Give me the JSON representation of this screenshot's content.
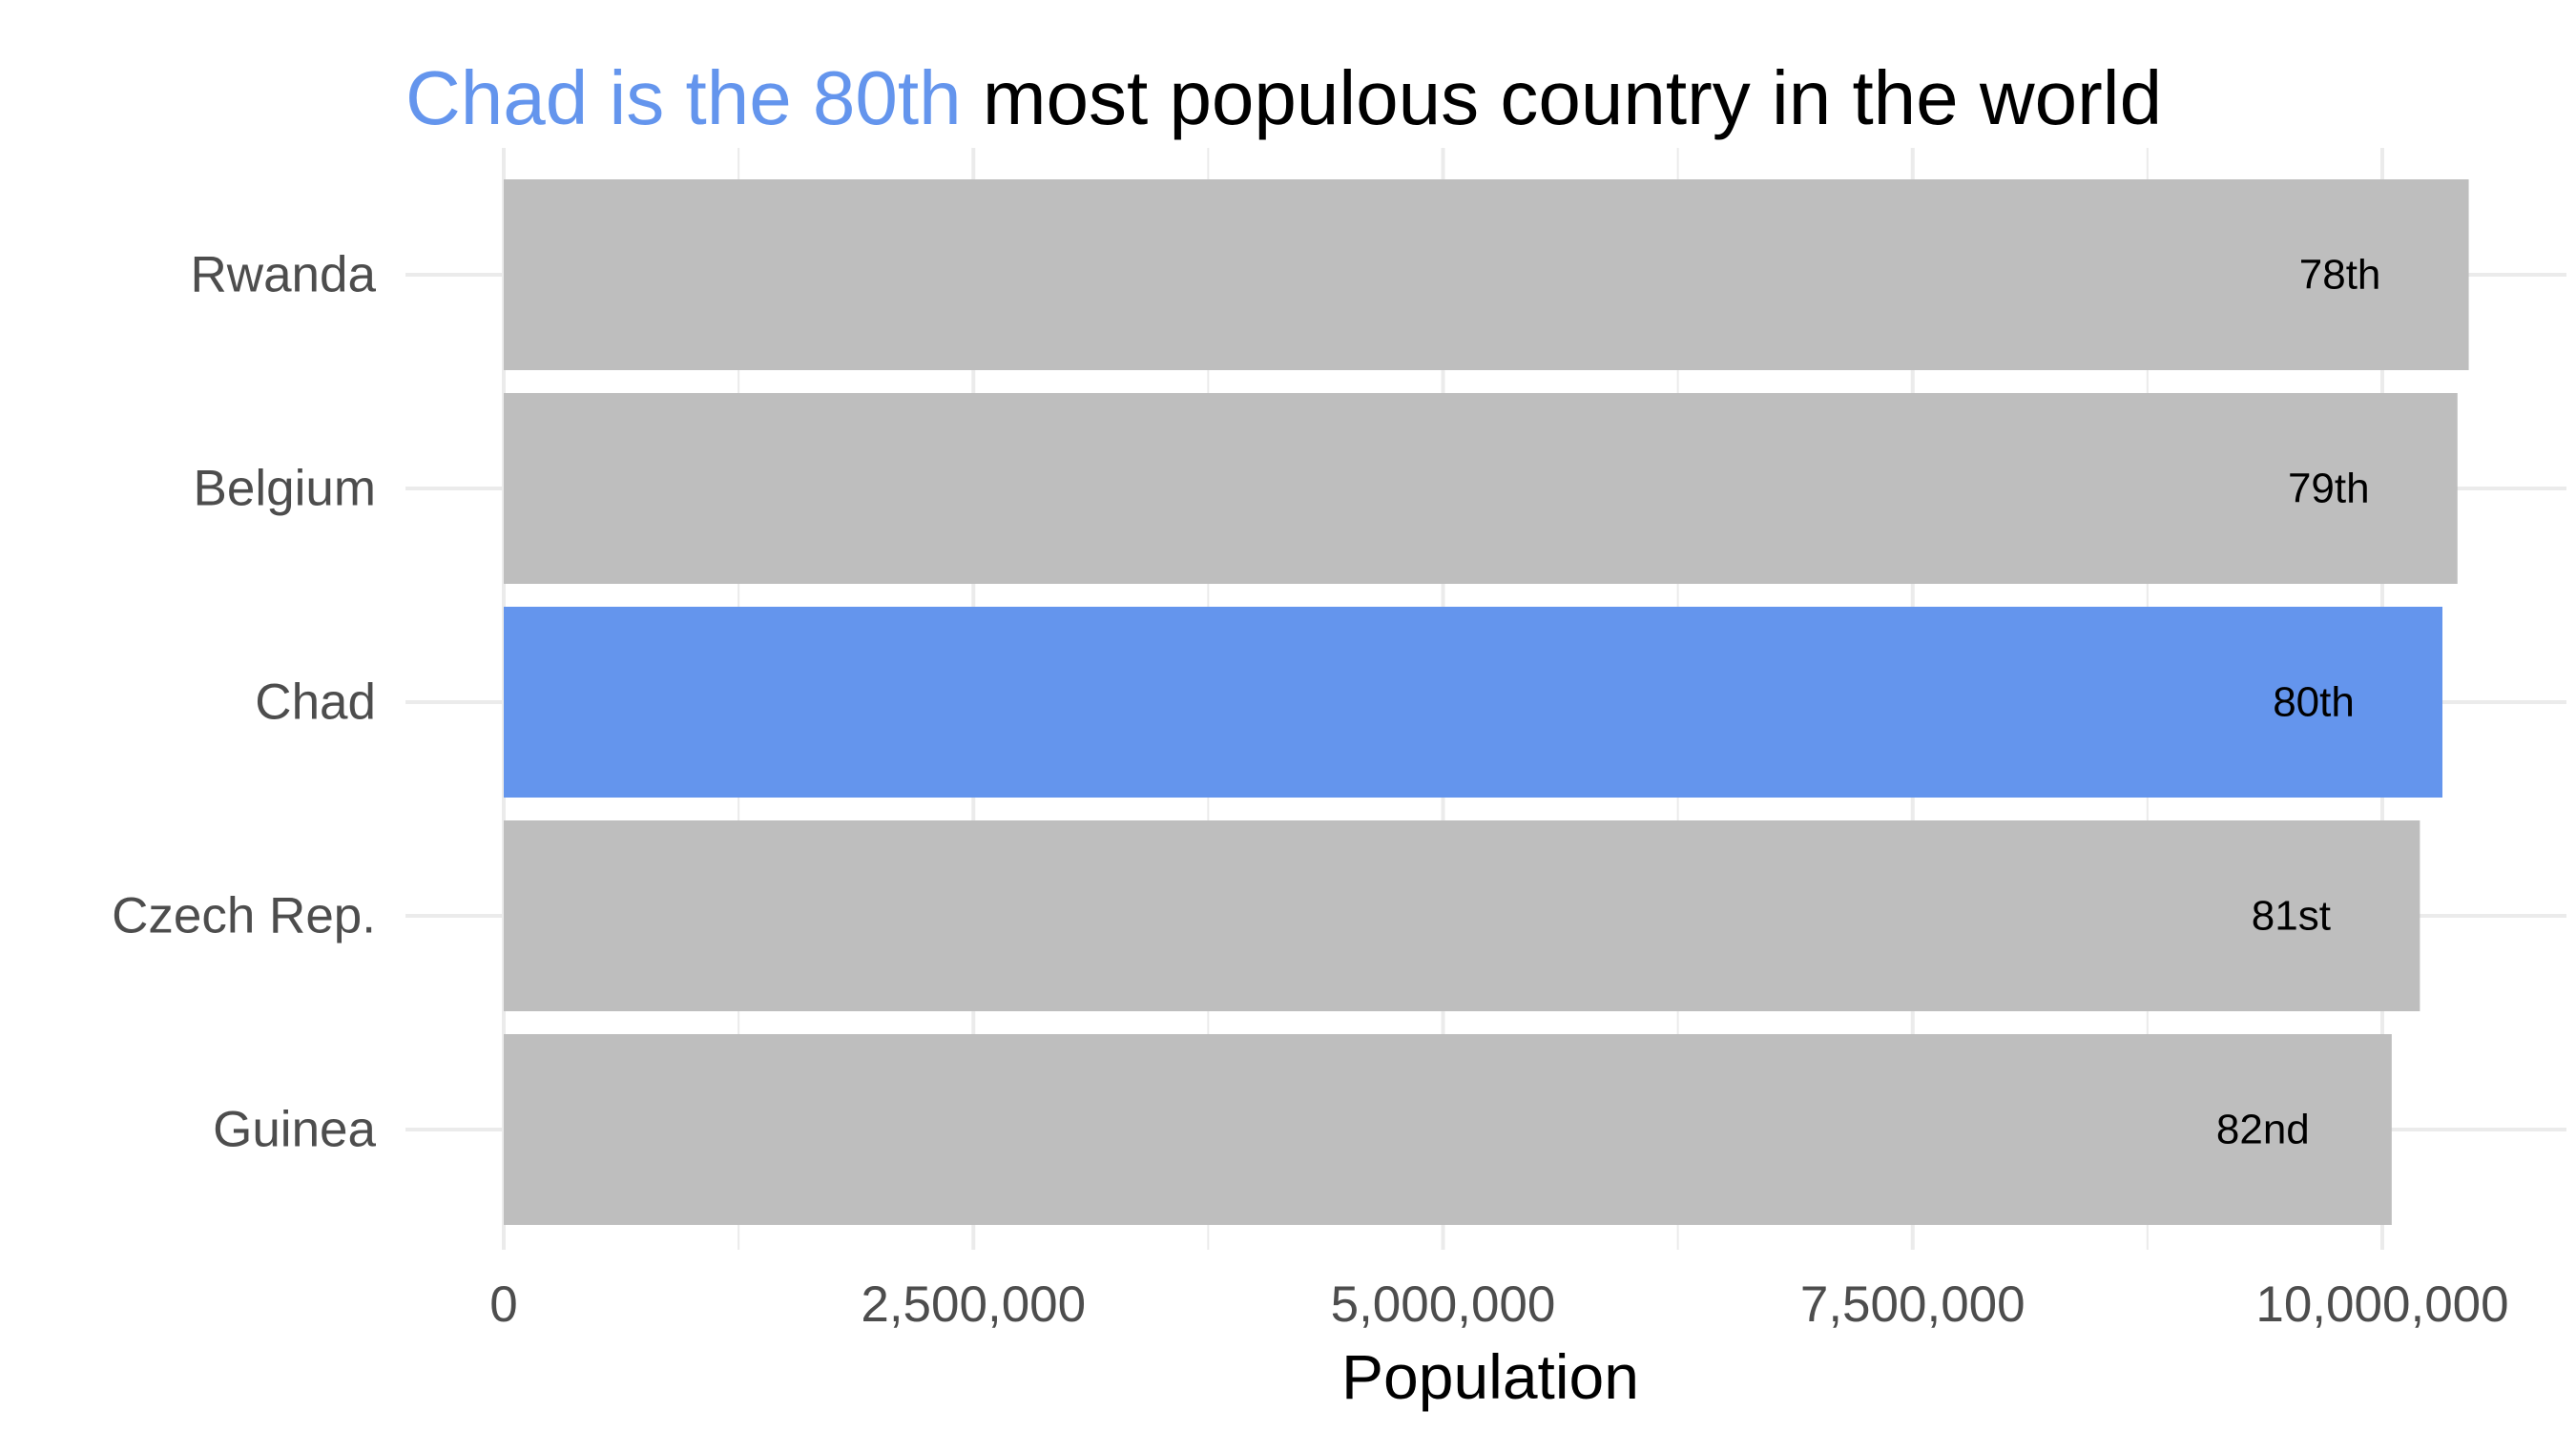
{
  "chart_data": {
    "type": "bar",
    "orientation": "horizontal",
    "title": {
      "highlight": "Chad is the 80th",
      "rest": " most populous country in the world"
    },
    "categories": [
      "Rwanda",
      "Belgium",
      "Chad",
      "Czech Rep.",
      "Guinea"
    ],
    "values": [
      10460000,
      10400000,
      10320000,
      10200000,
      10050000
    ],
    "rank_labels": [
      "78th",
      "79th",
      "80th",
      "81st",
      "82nd"
    ],
    "highlight_category": "Chad",
    "xlabel": "Population",
    "ylabel": "",
    "xlim": [
      0,
      10400000
    ],
    "x_ticks": [
      0,
      2500000,
      5000000,
      7500000,
      10000000
    ],
    "x_tick_labels": [
      "0",
      "2,500,000",
      "5,000,000",
      "7,500,000",
      "10,000,000"
    ],
    "grid": true,
    "legend": "none",
    "colors": {
      "highlight": "#6495ED",
      "default": "#BEBEBE",
      "grid": "#EBEBEB",
      "axis_text": "#4D4D4D",
      "title_rest": "#000000"
    }
  }
}
